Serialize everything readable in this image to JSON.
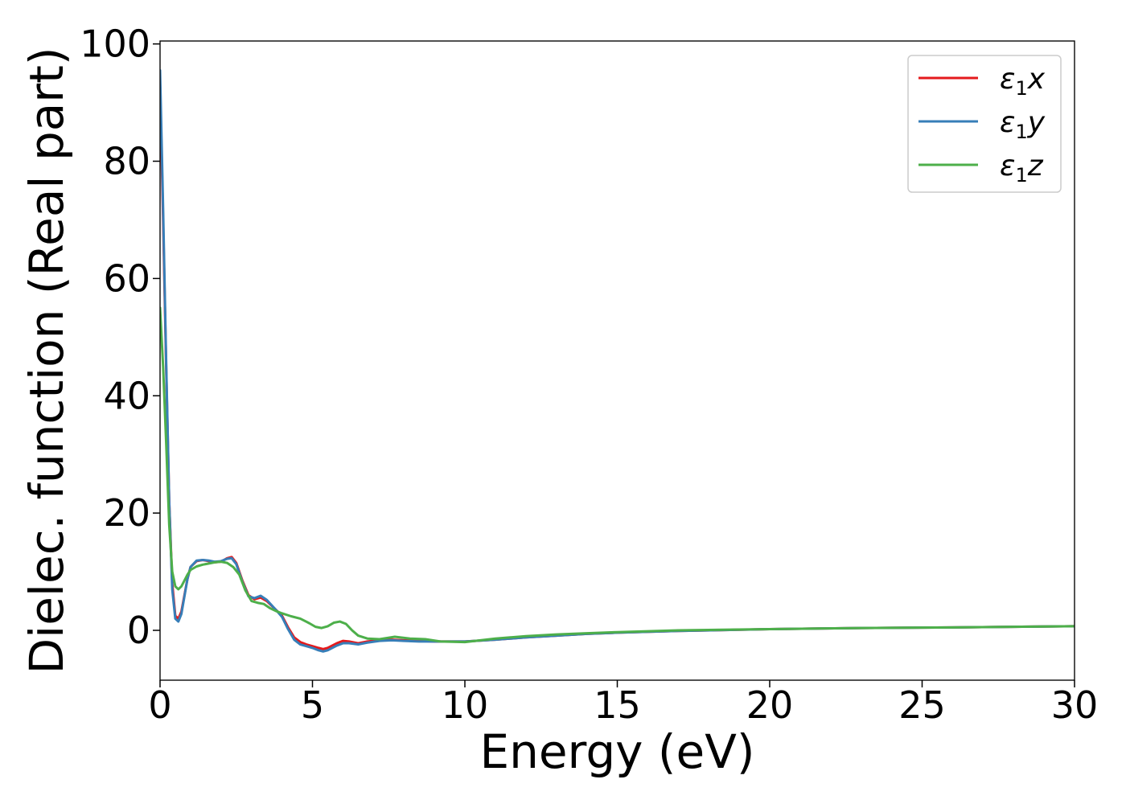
{
  "chart_data": {
    "type": "line",
    "title": "",
    "xlabel": "Energy (eV)",
    "ylabel": "Dielec. function (Real part)",
    "xlim": [
      0,
      30
    ],
    "ylim": [
      -8.5,
      100.5
    ],
    "xticks": [
      0,
      5,
      10,
      15,
      20,
      25,
      30
    ],
    "yticks": [
      0,
      20,
      40,
      60,
      80,
      100
    ],
    "grid": false,
    "legend_position": "top-right",
    "series": [
      {
        "name": "ε₁x",
        "legend_base": "ε",
        "legend_sub": "1",
        "legend_axis": "x",
        "color": "#e41a1c",
        "points": [
          [
            0,
            93
          ],
          [
            0.1,
            70
          ],
          [
            0.2,
            45
          ],
          [
            0.3,
            22
          ],
          [
            0.4,
            8
          ],
          [
            0.5,
            2.5
          ],
          [
            0.6,
            2.0
          ],
          [
            0.7,
            3.2
          ],
          [
            0.8,
            6.0
          ],
          [
            0.9,
            8.8
          ],
          [
            1.0,
            10.8
          ],
          [
            1.2,
            11.8
          ],
          [
            1.4,
            12.0
          ],
          [
            1.6,
            11.8
          ],
          [
            1.8,
            11.6
          ],
          [
            2.0,
            11.7
          ],
          [
            2.2,
            12.3
          ],
          [
            2.35,
            12.5
          ],
          [
            2.5,
            11.5
          ],
          [
            2.7,
            8.5
          ],
          [
            2.9,
            6.0
          ],
          [
            3.1,
            5.3
          ],
          [
            3.3,
            5.6
          ],
          [
            3.5,
            5.0
          ],
          [
            3.8,
            3.5
          ],
          [
            4.0,
            2.5
          ],
          [
            4.2,
            0.5
          ],
          [
            4.4,
            -1.2
          ],
          [
            4.6,
            -2.0
          ],
          [
            4.8,
            -2.4
          ],
          [
            5.0,
            -2.7
          ],
          [
            5.2,
            -3.0
          ],
          [
            5.35,
            -3.2
          ],
          [
            5.5,
            -3.0
          ],
          [
            5.8,
            -2.2
          ],
          [
            6.0,
            -1.8
          ],
          [
            6.2,
            -1.9
          ],
          [
            6.5,
            -2.2
          ],
          [
            6.8,
            -1.9
          ],
          [
            7.2,
            -1.7
          ],
          [
            7.6,
            -1.6
          ],
          [
            8.0,
            -1.7
          ],
          [
            8.5,
            -1.8
          ],
          [
            9.0,
            -1.9
          ],
          [
            10.0,
            -1.9
          ],
          [
            11,
            -1.6
          ],
          [
            12,
            -1.2
          ],
          [
            13,
            -0.9
          ],
          [
            14,
            -0.6
          ],
          [
            15,
            -0.4
          ],
          [
            17,
            -0.1
          ],
          [
            20,
            0.2
          ],
          [
            23,
            0.4
          ],
          [
            26,
            0.5
          ],
          [
            30,
            0.7
          ]
        ]
      },
      {
        "name": "ε₁y",
        "legend_base": "ε",
        "legend_sub": "1",
        "legend_axis": "y",
        "color": "#377eb8",
        "points": [
          [
            0,
            95.5
          ],
          [
            0.1,
            72
          ],
          [
            0.2,
            46
          ],
          [
            0.3,
            22
          ],
          [
            0.4,
            7
          ],
          [
            0.5,
            2.0
          ],
          [
            0.6,
            1.5
          ],
          [
            0.7,
            2.8
          ],
          [
            0.8,
            5.8
          ],
          [
            0.9,
            8.8
          ],
          [
            1.0,
            10.8
          ],
          [
            1.2,
            11.9
          ],
          [
            1.4,
            12.0
          ],
          [
            1.6,
            11.9
          ],
          [
            1.8,
            11.7
          ],
          [
            2.0,
            11.8
          ],
          [
            2.2,
            12.2
          ],
          [
            2.35,
            12.3
          ],
          [
            2.5,
            11.3
          ],
          [
            2.7,
            8.3
          ],
          [
            2.9,
            5.8
          ],
          [
            3.1,
            5.5
          ],
          [
            3.3,
            5.9
          ],
          [
            3.5,
            5.2
          ],
          [
            3.8,
            3.5
          ],
          [
            4.0,
            2.3
          ],
          [
            4.2,
            0.2
          ],
          [
            4.4,
            -1.6
          ],
          [
            4.6,
            -2.4
          ],
          [
            4.8,
            -2.7
          ],
          [
            5.0,
            -3.0
          ],
          [
            5.2,
            -3.4
          ],
          [
            5.35,
            -3.6
          ],
          [
            5.5,
            -3.4
          ],
          [
            5.8,
            -2.6
          ],
          [
            6.0,
            -2.2
          ],
          [
            6.2,
            -2.2
          ],
          [
            6.5,
            -2.4
          ],
          [
            6.8,
            -2.1
          ],
          [
            7.2,
            -1.8
          ],
          [
            7.6,
            -1.7
          ],
          [
            8.0,
            -1.8
          ],
          [
            8.5,
            -1.9
          ],
          [
            9.0,
            -1.9
          ],
          [
            10.0,
            -1.9
          ],
          [
            11,
            -1.6
          ],
          [
            12,
            -1.2
          ],
          [
            13,
            -0.9
          ],
          [
            14,
            -0.6
          ],
          [
            15,
            -0.4
          ],
          [
            17,
            -0.1
          ],
          [
            20,
            0.2
          ],
          [
            23,
            0.4
          ],
          [
            26,
            0.5
          ],
          [
            30,
            0.7
          ]
        ]
      },
      {
        "name": "ε₁z",
        "legend_base": "ε",
        "legend_sub": "1",
        "legend_axis": "z",
        "color": "#4daf4a",
        "points": [
          [
            0,
            55
          ],
          [
            0.1,
            45
          ],
          [
            0.2,
            32
          ],
          [
            0.3,
            18
          ],
          [
            0.4,
            10
          ],
          [
            0.5,
            7.5
          ],
          [
            0.6,
            7.0
          ],
          [
            0.7,
            7.5
          ],
          [
            0.8,
            8.5
          ],
          [
            0.9,
            9.5
          ],
          [
            1.0,
            10.3
          ],
          [
            1.2,
            10.9
          ],
          [
            1.4,
            11.2
          ],
          [
            1.6,
            11.4
          ],
          [
            1.8,
            11.6
          ],
          [
            2.0,
            11.7
          ],
          [
            2.2,
            11.5
          ],
          [
            2.4,
            10.8
          ],
          [
            2.6,
            9.5
          ],
          [
            2.8,
            6.8
          ],
          [
            3.0,
            5.0
          ],
          [
            3.2,
            4.7
          ],
          [
            3.4,
            4.5
          ],
          [
            3.6,
            3.8
          ],
          [
            3.8,
            3.3
          ],
          [
            4.0,
            2.9
          ],
          [
            4.3,
            2.4
          ],
          [
            4.6,
            2.0
          ],
          [
            4.9,
            1.2
          ],
          [
            5.1,
            0.6
          ],
          [
            5.3,
            0.4
          ],
          [
            5.5,
            0.7
          ],
          [
            5.7,
            1.3
          ],
          [
            5.9,
            1.5
          ],
          [
            6.1,
            1.1
          ],
          [
            6.3,
            0.0
          ],
          [
            6.5,
            -0.9
          ],
          [
            6.8,
            -1.4
          ],
          [
            7.2,
            -1.5
          ],
          [
            7.7,
            -1.1
          ],
          [
            8.2,
            -1.4
          ],
          [
            8.7,
            -1.5
          ],
          [
            9.2,
            -1.9
          ],
          [
            10.0,
            -2.0
          ],
          [
            11,
            -1.4
          ],
          [
            12,
            -1.0
          ],
          [
            13,
            -0.7
          ],
          [
            14,
            -0.5
          ],
          [
            15,
            -0.3
          ],
          [
            17,
            0.0
          ],
          [
            20,
            0.2
          ],
          [
            23,
            0.4
          ],
          [
            26,
            0.5
          ],
          [
            30,
            0.7
          ]
        ]
      }
    ]
  }
}
